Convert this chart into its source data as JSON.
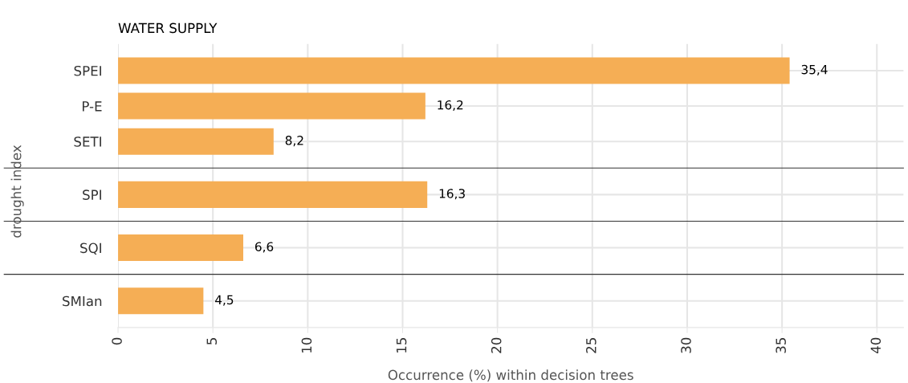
{
  "chart_data": [
    {
      "type": "bar",
      "orientation": "horizontal",
      "title": "WATER SUPPLY",
      "ylabel": "drought index",
      "categories": [
        "SPEI",
        "P-E",
        "SETI"
      ],
      "values": [
        35.4,
        16.2,
        8.2
      ],
      "value_labels": [
        "35,4",
        "16,2",
        "8,2"
      ],
      "color": "#f5ae55",
      "xlim": [
        0,
        41.4
      ],
      "xticks": [
        0,
        5,
        10,
        15,
        20,
        25,
        30,
        35,
        40
      ],
      "grid": true,
      "tick_labels": "y"
    },
    {
      "type": "bar",
      "orientation": "horizontal",
      "categories": [
        "SPI"
      ],
      "values": [
        16.3
      ],
      "value_labels": [
        "16,3"
      ],
      "color": "#f5ae55",
      "xlim": [
        0,
        41.4
      ],
      "xticks": [
        0,
        5,
        10,
        15,
        20,
        25,
        30,
        35,
        40
      ],
      "grid": true,
      "tick_labels": "y"
    },
    {
      "type": "bar",
      "orientation": "horizontal",
      "categories": [
        "SQI"
      ],
      "values": [
        6.6
      ],
      "value_labels": [
        "6,6"
      ],
      "color": "#f5ae55",
      "xlim": [
        0,
        41.4
      ],
      "xticks": [
        0,
        5,
        10,
        15,
        20,
        25,
        30,
        35,
        40
      ],
      "grid": true,
      "tick_labels": "y"
    },
    {
      "type": "bar",
      "orientation": "horizontal",
      "categories": [
        "SMIan"
      ],
      "values": [
        4.5
      ],
      "value_labels": [
        "4,5"
      ],
      "color": "#f5ae55",
      "xlim": [
        0,
        41.4
      ],
      "xticks": [
        0,
        5,
        10,
        15,
        20,
        25,
        30,
        35,
        40
      ],
      "xlabel": "Occurrence (%) within decision trees",
      "grid": true
    }
  ]
}
